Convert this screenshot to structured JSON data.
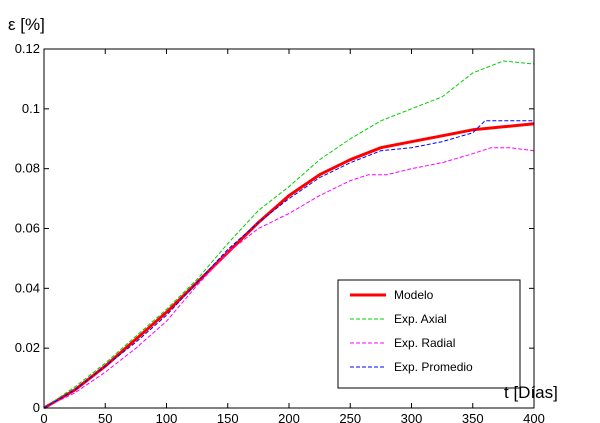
{
  "chart_data": {
    "type": "line",
    "title": "",
    "xlabel": "t [Días]",
    "ylabel": "ε [%]",
    "xlim": [
      0,
      400
    ],
    "ylim": [
      0,
      0.12
    ],
    "xticks": [
      "0",
      "50",
      "100",
      "150",
      "200",
      "250",
      "300",
      "350",
      "400"
    ],
    "yticks": [
      "0",
      "0.02",
      "0.04",
      "0.06",
      "0.08",
      "0.1",
      "0.12"
    ],
    "xtick_values": [
      0,
      50,
      100,
      150,
      200,
      250,
      300,
      350,
      400
    ],
    "ytick_values": [
      0,
      0.02,
      0.04,
      0.06,
      0.08,
      0.1,
      0.12
    ],
    "grid": false,
    "legend_position": "bottom-right",
    "series": [
      {
        "name": "Modelo",
        "color": "#ff0000",
        "style": "solid",
        "points": [
          [
            0,
            0
          ],
          [
            25,
            0.006
          ],
          [
            50,
            0.014
          ],
          [
            75,
            0.023
          ],
          [
            100,
            0.032
          ],
          [
            125,
            0.042
          ],
          [
            150,
            0.052
          ],
          [
            175,
            0.062
          ],
          [
            200,
            0.071
          ],
          [
            225,
            0.078
          ],
          [
            250,
            0.083
          ],
          [
            275,
            0.087
          ],
          [
            300,
            0.089
          ],
          [
            325,
            0.091
          ],
          [
            350,
            0.093
          ],
          [
            375,
            0.094
          ],
          [
            400,
            0.095
          ]
        ]
      },
      {
        "name": "Exp. Axial",
        "color": "#00d000",
        "style": "dashed",
        "points": [
          [
            0,
            0
          ],
          [
            25,
            0.007
          ],
          [
            50,
            0.015
          ],
          [
            75,
            0.024
          ],
          [
            100,
            0.033
          ],
          [
            125,
            0.043
          ],
          [
            150,
            0.055
          ],
          [
            175,
            0.066
          ],
          [
            200,
            0.074
          ],
          [
            225,
            0.083
          ],
          [
            250,
            0.09
          ],
          [
            275,
            0.096
          ],
          [
            300,
            0.1
          ],
          [
            325,
            0.104
          ],
          [
            350,
            0.112
          ],
          [
            375,
            0.116
          ],
          [
            400,
            0.115
          ]
        ]
      },
      {
        "name": "Exp. Radial",
        "color": "#ff00ff",
        "style": "dashed",
        "points": [
          [
            0,
            0
          ],
          [
            25,
            0.005
          ],
          [
            50,
            0.012
          ],
          [
            75,
            0.02
          ],
          [
            100,
            0.029
          ],
          [
            125,
            0.041
          ],
          [
            150,
            0.052
          ],
          [
            175,
            0.06
          ],
          [
            200,
            0.065
          ],
          [
            225,
            0.071
          ],
          [
            250,
            0.076
          ],
          [
            265,
            0.078
          ],
          [
            280,
            0.078
          ],
          [
            300,
            0.08
          ],
          [
            325,
            0.082
          ],
          [
            350,
            0.085
          ],
          [
            365,
            0.087
          ],
          [
            380,
            0.087
          ],
          [
            400,
            0.086
          ]
        ]
      },
      {
        "name": "Exp. Promedio",
        "color": "#0000ff",
        "style": "dashed",
        "points": [
          [
            0,
            0
          ],
          [
            25,
            0.006
          ],
          [
            50,
            0.014
          ],
          [
            75,
            0.022
          ],
          [
            100,
            0.031
          ],
          [
            125,
            0.042
          ],
          [
            150,
            0.053
          ],
          [
            175,
            0.062
          ],
          [
            200,
            0.07
          ],
          [
            225,
            0.077
          ],
          [
            250,
            0.082
          ],
          [
            275,
            0.086
          ],
          [
            300,
            0.087
          ],
          [
            325,
            0.089
          ],
          [
            350,
            0.092
          ],
          [
            360,
            0.096
          ],
          [
            400,
            0.096
          ]
        ]
      }
    ]
  }
}
